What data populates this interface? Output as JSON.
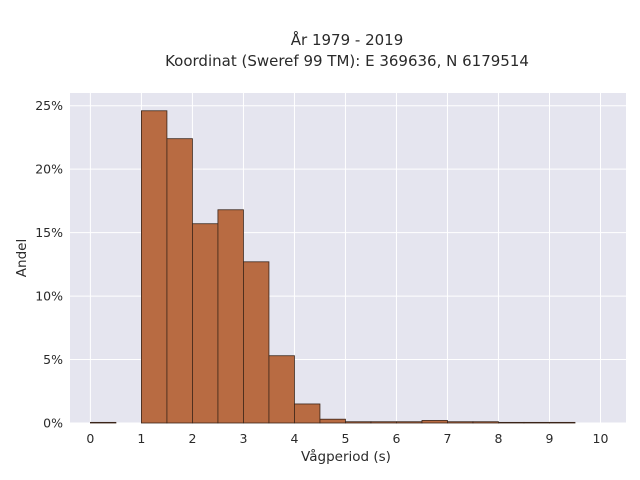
{
  "chart_data": {
    "type": "bar",
    "title_lines": [
      "År 1979 - 2019",
      "Koordinat (Sweref 99 TM): E 369636, N 6179514"
    ],
    "xlabel": "Vågperiod (s)",
    "ylabel": "Andel",
    "xlim": [
      -0.4,
      10.5
    ],
    "ylim": [
      0,
      26
    ],
    "xticks": [
      0,
      1,
      2,
      3,
      4,
      5,
      6,
      7,
      8,
      9,
      10
    ],
    "yticks": [
      0,
      5,
      10,
      15,
      20,
      25
    ],
    "ytick_labels": [
      "0%",
      "5%",
      "10%",
      "15%",
      "20%",
      "25%"
    ],
    "bin_width": 0.5,
    "bins": [
      {
        "start": 0.0,
        "value": 0.05
      },
      {
        "start": 1.0,
        "value": 24.6
      },
      {
        "start": 1.5,
        "value": 22.4
      },
      {
        "start": 2.0,
        "value": 15.7
      },
      {
        "start": 2.5,
        "value": 16.8
      },
      {
        "start": 3.0,
        "value": 12.7
      },
      {
        "start": 3.5,
        "value": 5.3
      },
      {
        "start": 4.0,
        "value": 1.5
      },
      {
        "start": 4.5,
        "value": 0.3
      },
      {
        "start": 5.0,
        "value": 0.1
      },
      {
        "start": 5.5,
        "value": 0.1
      },
      {
        "start": 6.0,
        "value": 0.1
      },
      {
        "start": 6.5,
        "value": 0.2
      },
      {
        "start": 7.0,
        "value": 0.1
      },
      {
        "start": 7.5,
        "value": 0.1
      },
      {
        "start": 8.0,
        "value": 0.05
      },
      {
        "start": 8.5,
        "value": 0.05
      },
      {
        "start": 9.0,
        "value": 0.05
      }
    ],
    "bar_color": "#b86b42",
    "bar_edge_color": "#3a2418",
    "plot_bg": "#e5e5ef",
    "grid": true
  }
}
